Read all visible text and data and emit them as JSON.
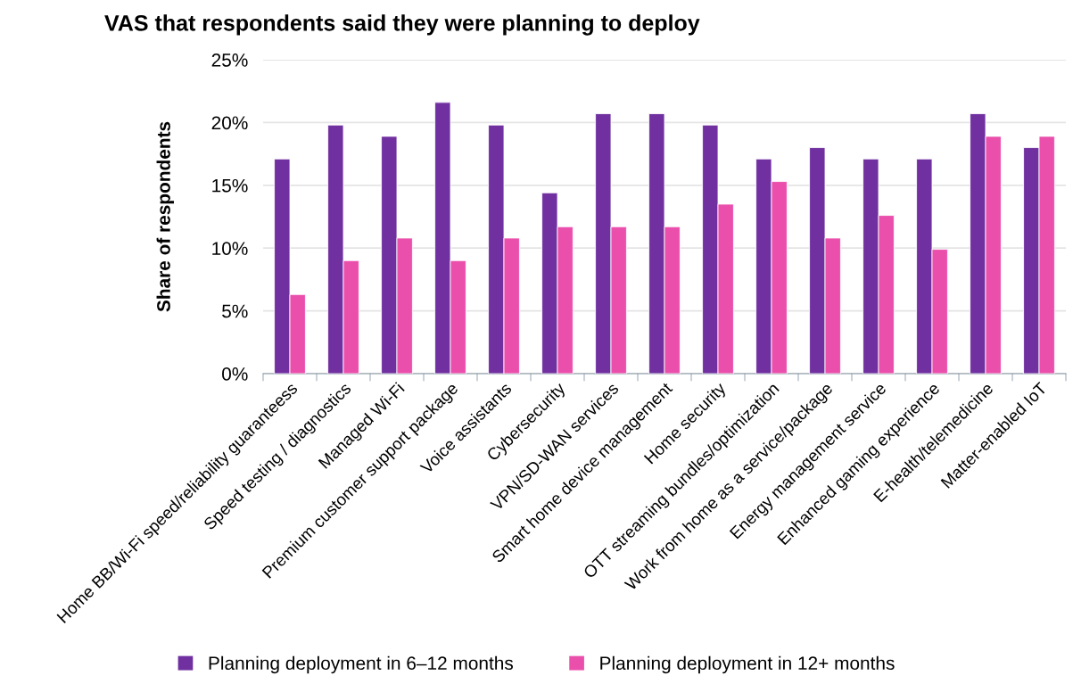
{
  "chart_data": {
    "type": "bar",
    "title": "VAS that respondents said they were planning to deploy",
    "ylabel": "Share of respondents",
    "categories": [
      "Home BB/Wi-Fi speed/reliability guaranteess",
      "Speed testing / diagnostics",
      "Managed Wi-Fi",
      "Premium customer support package",
      "Voice assistants",
      "Cybersecurity",
      "VPN/SD-WAN services",
      "Smart home device management",
      "Home security",
      "OTT streaming bundles/optimization",
      "Work from home as a service/package",
      "Energy management service",
      "Enhanced gaming experience",
      "E-health/telemedicine",
      "Matter-enabled IoT"
    ],
    "series": [
      {
        "name": "Planning deployment in 6–12 months",
        "color": "#7030a0",
        "values": [
          17.1,
          19.8,
          18.9,
          21.6,
          19.8,
          14.4,
          20.7,
          20.7,
          19.8,
          17.1,
          18.0,
          17.1,
          17.1,
          20.7,
          18.0
        ]
      },
      {
        "name": "Planning deployment in 12+ months",
        "color": "#ea4fac",
        "values": [
          6.3,
          9.0,
          10.8,
          9.0,
          10.8,
          11.7,
          11.7,
          11.7,
          13.5,
          15.3,
          10.8,
          12.6,
          9.9,
          18.9,
          18.9
        ]
      }
    ],
    "ylim": [
      0,
      25
    ],
    "yticks": [
      {
        "value": 0,
        "label": "0%"
      },
      {
        "value": 5,
        "label": "5%"
      },
      {
        "value": 10,
        "label": "10%"
      },
      {
        "value": 15,
        "label": "15%"
      },
      {
        "value": 20,
        "label": "20%"
      },
      {
        "value": 25,
        "label": "25%"
      }
    ],
    "grid": "y",
    "legend": "bottom"
  }
}
